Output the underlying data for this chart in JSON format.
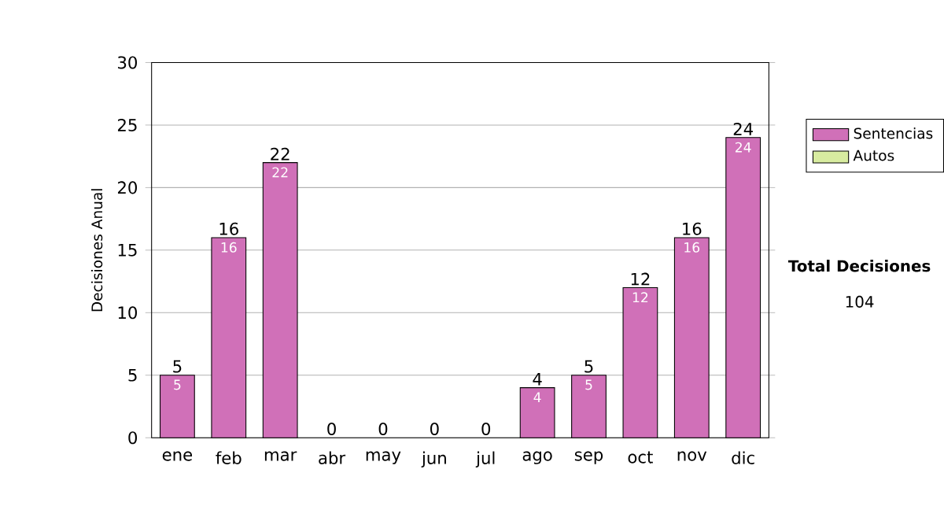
{
  "chart_data": {
    "type": "bar",
    "stacked": true,
    "ylabel": "Decisiones Anual",
    "categories": [
      "ene",
      "feb",
      "mar",
      "abr",
      "may",
      "jun",
      "jul",
      "ago",
      "sep",
      "oct",
      "nov",
      "dic"
    ],
    "series": [
      {
        "name": "Sentencias",
        "color": "#d070b8",
        "values": [
          5,
          16,
          22,
          0,
          0,
          0,
          0,
          4,
          5,
          12,
          16,
          24
        ],
        "value_labels": [
          "5",
          "16",
          "22",
          null,
          null,
          null,
          null,
          "4",
          "5",
          "12",
          "16",
          "24"
        ]
      },
      {
        "name": "Autos",
        "color": "#d8eca0",
        "values": [
          0,
          0,
          0,
          0,
          0,
          0,
          0,
          0,
          0,
          0,
          0,
          0
        ]
      }
    ],
    "totals": [
      "5",
      "16",
      "22",
      "0",
      "0",
      "0",
      "0",
      "4",
      "5",
      "12",
      "16",
      "24"
    ],
    "ylim": [
      0,
      30
    ],
    "yticks": [
      0,
      5,
      10,
      15,
      20,
      25,
      30
    ],
    "grid": "y",
    "legend": "right",
    "annotations": [
      "Total Decisiones",
      "104"
    ]
  }
}
